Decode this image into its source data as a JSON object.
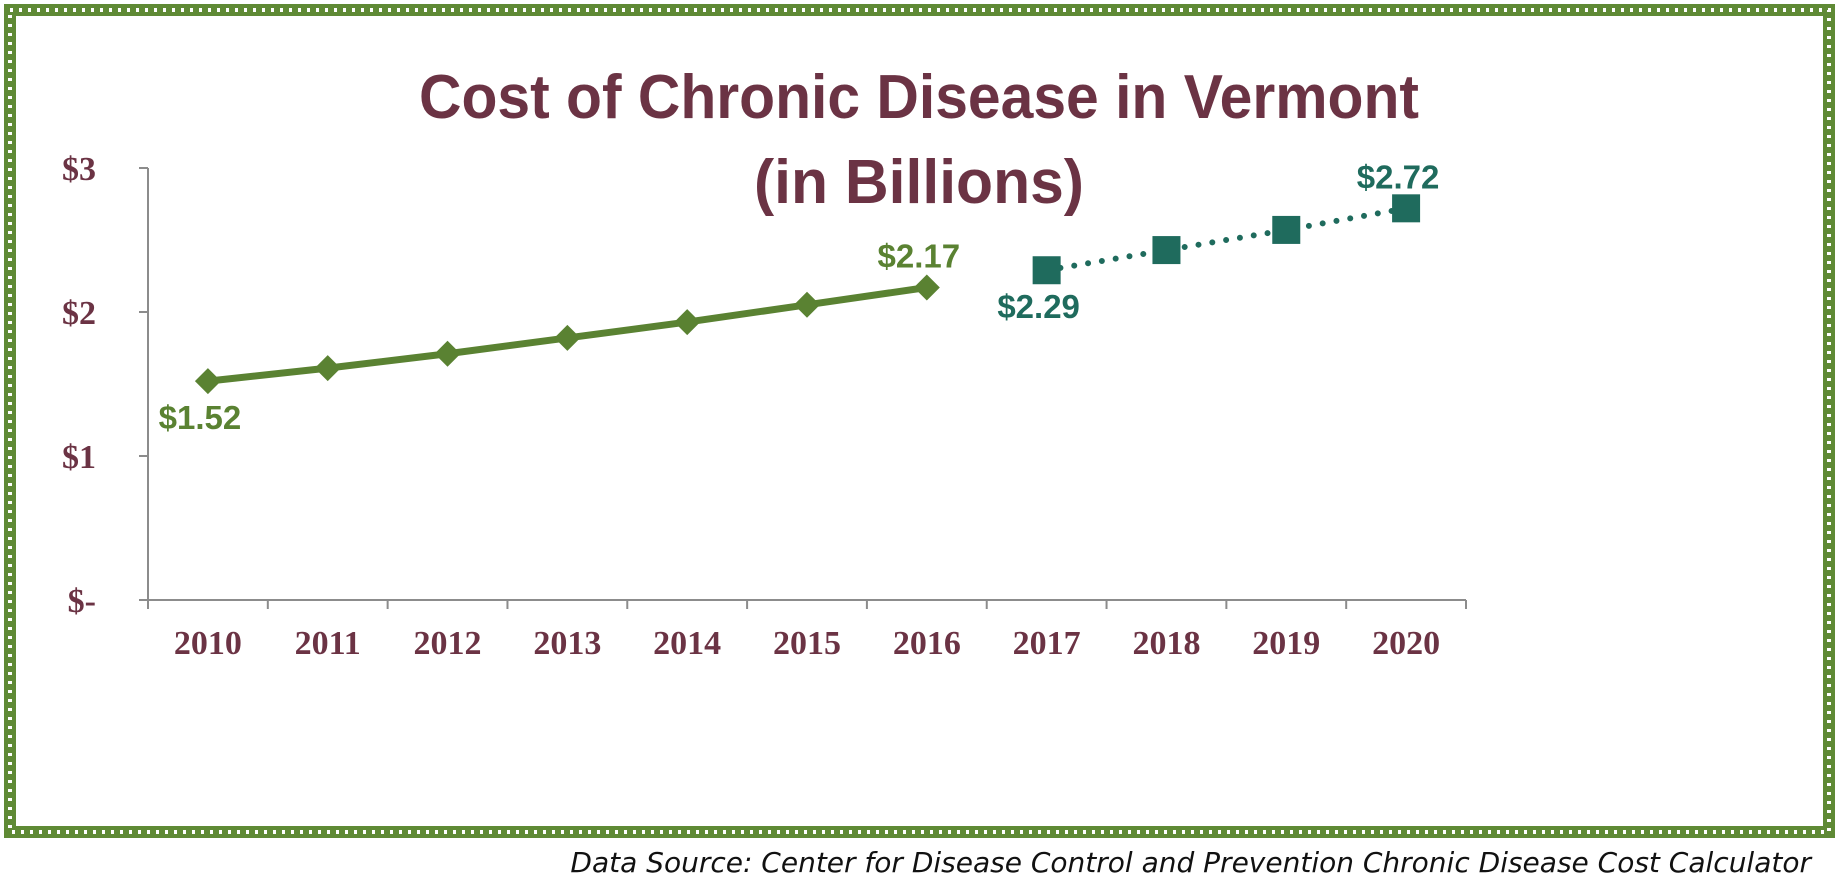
{
  "colors": {
    "border": "#5f8a35",
    "border_dots": "#ffffff",
    "title": "#6b3344",
    "axis": "#8c8c8c",
    "actual_series": "#5a8232",
    "projected_series": "#1f6b5d"
  },
  "source_note": "Data Source: Center for Disease Control and Prevention Chronic Disease Cost Calculator",
  "chart_data": {
    "type": "line",
    "title": "Cost of Chronic Disease in Vermont",
    "subtitle": "(in Billions)",
    "categories": [
      "2010",
      "2011",
      "2012",
      "2013",
      "2014",
      "2015",
      "2016",
      "2017",
      "2018",
      "2019",
      "2020"
    ],
    "ylim": [
      0,
      3
    ],
    "yticks": [
      {
        "value": 0,
        "label": "$-"
      },
      {
        "value": 1,
        "label": "$1"
      },
      {
        "value": 2,
        "label": "$2"
      },
      {
        "value": 3,
        "label": "$3"
      }
    ],
    "grid": false,
    "legend": "none",
    "series": [
      {
        "style": "solid",
        "marker": "diamond",
        "color": "#5a8232",
        "x": [
          "2010",
          "2011",
          "2012",
          "2013",
          "2014",
          "2015",
          "2016"
        ],
        "values": [
          1.52,
          1.61,
          1.71,
          1.82,
          1.93,
          2.05,
          2.17
        ],
        "labels": [
          {
            "x": "2010",
            "text": "$1.52",
            "position": "below"
          },
          {
            "x": "2016",
            "text": "$2.17",
            "position": "above"
          }
        ]
      },
      {
        "style": "dotted",
        "marker": "square",
        "color": "#1f6b5d",
        "x": [
          "2017",
          "2018",
          "2019",
          "2020"
        ],
        "values": [
          2.29,
          2.43,
          2.57,
          2.72
        ],
        "labels": [
          {
            "x": "2017",
            "text": "$2.29",
            "position": "below"
          },
          {
            "x": "2020",
            "text": "$2.72",
            "position": "above"
          }
        ]
      }
    ]
  }
}
